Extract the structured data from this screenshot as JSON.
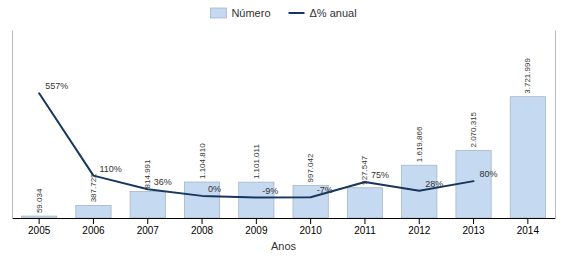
{
  "chart_data": {
    "type": "bar",
    "x_label": "Anos",
    "categories": [
      "2005",
      "2006",
      "2007",
      "2008",
      "2009",
      "2010",
      "2011",
      "2012",
      "2013",
      "2014"
    ],
    "series": [
      {
        "name": "Número",
        "type": "bar",
        "color": "#C5D9F1",
        "values": [
          59034,
          387722,
          814991,
          1104810,
          1101011,
          997042,
          927547,
          1619866,
          2070315,
          3721999
        ],
        "value_labels": [
          "59.034",
          "387.722",
          "814.991",
          "1.104.810",
          "1.101.011",
          "997.042",
          "927.547",
          "1.619.866",
          "2.070.315",
          "3.721.999"
        ]
      },
      {
        "name": "Δ% anual",
        "type": "line",
        "axis": "y2",
        "color": "#17375E",
        "values": [
          5.57,
          1.1,
          0.36,
          0.0,
          -0.09,
          -0.07,
          0.75,
          0.28,
          0.8,
          null
        ],
        "value_labels": [
          "557%",
          "110%",
          "36%",
          "0%",
          "-9%",
          "-7%",
          "75%",
          "28%",
          "80%",
          null
        ]
      }
    ],
    "ylim": [
      0,
      5769098.45
    ],
    "y2lim": [
      -1.2,
      9.0
    ],
    "data_labels": true,
    "tick_labels": "x",
    "legend": "top"
  }
}
